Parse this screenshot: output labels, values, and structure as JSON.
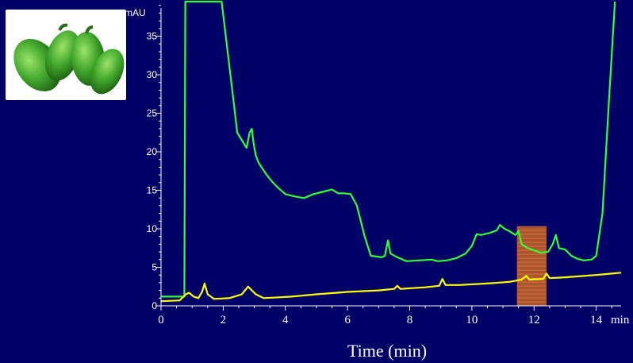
{
  "image": {
    "icon": "green-peppers-photo"
  },
  "chart_data": {
    "type": "line",
    "ylabel": "mAU",
    "xunit": "min",
    "xlabel": "Time (min)",
    "xlim": [
      0,
      14.8
    ],
    "ylim": [
      0,
      39.5
    ],
    "x_ticks": [
      0,
      2,
      4,
      6,
      8,
      10,
      12,
      14
    ],
    "x_tick_labels": [
      "0",
      "2",
      "4",
      "6",
      "8",
      "10",
      "12",
      "14"
    ],
    "y_ticks": [
      0,
      5,
      10,
      15,
      20,
      25,
      30,
      35
    ],
    "y_tick_labels": [
      "0",
      "5",
      "10",
      "15",
      "20",
      "25",
      "30",
      "35"
    ],
    "highlight_region": {
      "x": [
        11.45,
        12.4
      ],
      "color": "#b85a2a"
    },
    "series": [
      {
        "color": "#33ff33",
        "points": [
          [
            0,
            1.2
          ],
          [
            0.75,
            1.2
          ],
          [
            0.78,
            39.5
          ],
          [
            1.95,
            39.5
          ],
          [
            2.35,
            26
          ],
          [
            2.45,
            22.5
          ],
          [
            2.6,
            21.5
          ],
          [
            2.75,
            20.5
          ],
          [
            2.85,
            22.5
          ],
          [
            2.92,
            23
          ],
          [
            2.98,
            21
          ],
          [
            3.05,
            19.5
          ],
          [
            3.15,
            18.5
          ],
          [
            3.4,
            17
          ],
          [
            3.6,
            16
          ],
          [
            3.8,
            15.2
          ],
          [
            4,
            14.5
          ],
          [
            4.3,
            14.2
          ],
          [
            4.6,
            14
          ],
          [
            4.9,
            14.5
          ],
          [
            5.2,
            14.8
          ],
          [
            5.5,
            15.1
          ],
          [
            5.7,
            14.6
          ],
          [
            5.9,
            14.6
          ],
          [
            6.1,
            14.5
          ],
          [
            6.3,
            13
          ],
          [
            6.55,
            9
          ],
          [
            6.75,
            6.5
          ],
          [
            7.1,
            6.3
          ],
          [
            7.2,
            6.5
          ],
          [
            7.3,
            8.5
          ],
          [
            7.38,
            6.8
          ],
          [
            7.6,
            6.3
          ],
          [
            7.9,
            5.8
          ],
          [
            8.3,
            5.9
          ],
          [
            8.7,
            6
          ],
          [
            8.9,
            5.8
          ],
          [
            9.2,
            5.9
          ],
          [
            9.5,
            6.2
          ],
          [
            9.8,
            6.8
          ],
          [
            10,
            7.8
          ],
          [
            10.15,
            9.3
          ],
          [
            10.3,
            9.2
          ],
          [
            10.6,
            9.5
          ],
          [
            10.8,
            9.8
          ],
          [
            10.9,
            10.5
          ],
          [
            11.05,
            10
          ],
          [
            11.2,
            9.7
          ],
          [
            11.4,
            9.2
          ],
          [
            11.5,
            9.7
          ],
          [
            11.6,
            8
          ],
          [
            11.8,
            7.5
          ],
          [
            12,
            7.2
          ],
          [
            12.2,
            6.9
          ],
          [
            12.45,
            7
          ],
          [
            12.6,
            8
          ],
          [
            12.7,
            9.2
          ],
          [
            12.8,
            7.5
          ],
          [
            13,
            7.3
          ],
          [
            13.2,
            6.5
          ],
          [
            13.4,
            6.1
          ],
          [
            13.6,
            5.9
          ],
          [
            13.85,
            6
          ],
          [
            14,
            6.5
          ],
          [
            14.2,
            12
          ],
          [
            14.4,
            26
          ],
          [
            14.6,
            39.5
          ]
        ]
      },
      {
        "color": "#ffff00",
        "points": [
          [
            0,
            0.6
          ],
          [
            0.6,
            0.7
          ],
          [
            0.8,
            1.5
          ],
          [
            0.9,
            1.7
          ],
          [
            1.05,
            1.2
          ],
          [
            1.2,
            1
          ],
          [
            1.32,
            1.8
          ],
          [
            1.4,
            2.9
          ],
          [
            1.5,
            1.5
          ],
          [
            1.7,
            0.9
          ],
          [
            2.2,
            1
          ],
          [
            2.6,
            1.5
          ],
          [
            2.8,
            2.5
          ],
          [
            3.05,
            1.5
          ],
          [
            3.3,
            1
          ],
          [
            3.8,
            1.1
          ],
          [
            4.2,
            1.2
          ],
          [
            5,
            1.5
          ],
          [
            6,
            1.8
          ],
          [
            7,
            2
          ],
          [
            7.5,
            2.2
          ],
          [
            7.6,
            2.6
          ],
          [
            7.7,
            2.2
          ],
          [
            8.5,
            2.4
          ],
          [
            8.95,
            2.6
          ],
          [
            9.05,
            3.5
          ],
          [
            9.15,
            2.7
          ],
          [
            9.6,
            2.7
          ],
          [
            10.5,
            2.9
          ],
          [
            11.2,
            3.1
          ],
          [
            11.6,
            3.4
          ],
          [
            11.75,
            3.9
          ],
          [
            11.85,
            3.4
          ],
          [
            12.3,
            3.5
          ],
          [
            12.4,
            4.2
          ],
          [
            12.5,
            3.6
          ],
          [
            13,
            3.7
          ],
          [
            14,
            4
          ],
          [
            14.8,
            4.3
          ]
        ]
      }
    ]
  }
}
